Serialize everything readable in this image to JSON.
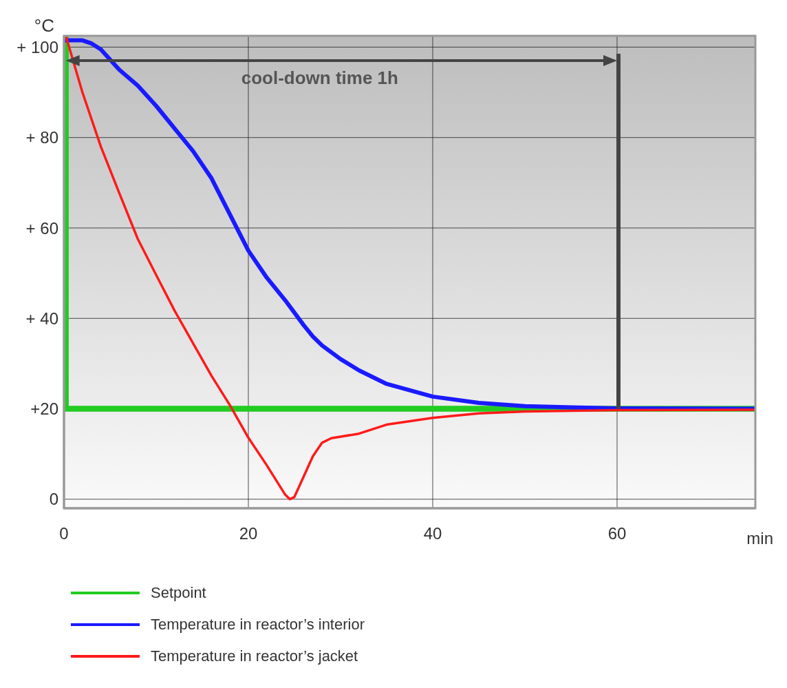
{
  "chart_data": {
    "type": "line",
    "xlabel": "min",
    "ylabel": "°C",
    "xlim": [
      0,
      75
    ],
    "ylim": [
      -2,
      102.5
    ],
    "xticks": [
      0,
      20,
      40,
      60
    ],
    "yticks": [
      {
        "value": 0,
        "label": "0"
      },
      {
        "value": 20,
        "label": "+20"
      },
      {
        "value": 40,
        "label": "+ 40"
      },
      {
        "value": 60,
        "label": "+ 60"
      },
      {
        "value": 80,
        "label": "+ 80"
      },
      {
        "value": 100,
        "label": "+ 100"
      }
    ],
    "grid": true,
    "legend": "bottom",
    "marker": "none",
    "line_style": "solid",
    "annotations": [
      "cool-down time 1h"
    ],
    "ref_lines": [
      {
        "axis": "x",
        "value": 60,
        "color": "#444444"
      }
    ],
    "series": [
      {
        "name": "Setpoint",
        "color": "#22cc22",
        "x": [
          0.2,
          0.2,
          75
        ],
        "values": [
          102.5,
          20,
          20
        ]
      },
      {
        "name": "Temperature in reactor’s interior",
        "color": "#1a1aff",
        "x": [
          0,
          2,
          3,
          4,
          6,
          8,
          10,
          12,
          14,
          16,
          18,
          20,
          22,
          24,
          26,
          27,
          28,
          30,
          32,
          35,
          40,
          45,
          50,
          55,
          60,
          75
        ],
        "values": [
          101.5,
          101.5,
          100.8,
          99.5,
          95,
          91.5,
          87,
          82,
          77,
          71,
          63,
          55,
          49,
          44,
          38.5,
          36,
          34,
          31,
          28.5,
          25.5,
          22.7,
          21.3,
          20.6,
          20.3,
          20.1,
          20
        ]
      },
      {
        "name": "Temperature in reactor’s jacket",
        "color": "#ff1a1a",
        "x": [
          0.2,
          2,
          4,
          6,
          8,
          10,
          12,
          14,
          16,
          18,
          20,
          22,
          24,
          24.5,
          25,
          26,
          27,
          28,
          29,
          32,
          35,
          40,
          45,
          50,
          60,
          75
        ],
        "values": [
          102.5,
          90,
          78,
          67.7,
          57.6,
          49.6,
          41.7,
          34.5,
          27.3,
          20.8,
          13.6,
          7.5,
          1,
          0,
          0.5,
          5,
          9.5,
          12.5,
          13.5,
          14.5,
          16.5,
          18,
          19,
          19.4,
          19.7,
          19.8
        ]
      }
    ]
  }
}
